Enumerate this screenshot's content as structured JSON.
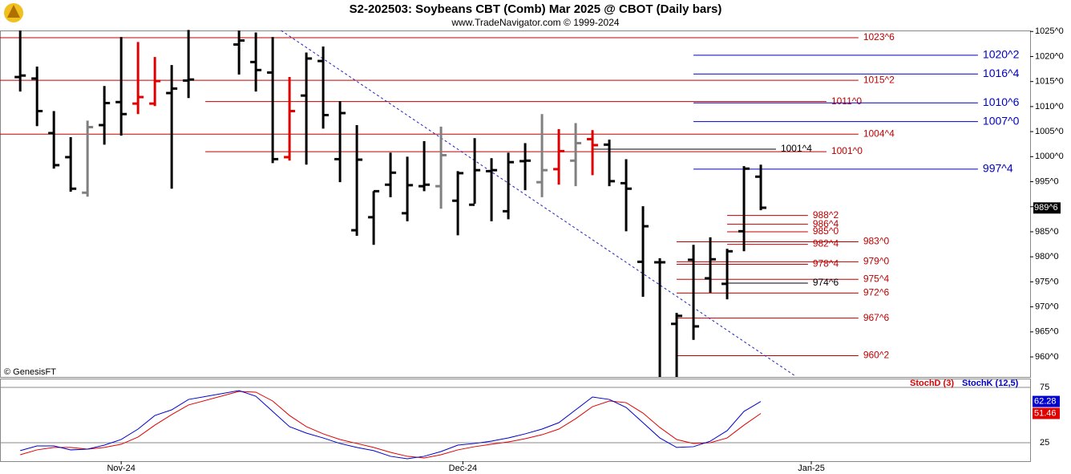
{
  "chart_data": [
    {
      "type": "ohlc",
      "title": "S2-202503:  Soybeans CBT (Comb) Mar 2025 @ CBOT  (Daily bars)",
      "subtitle": "www.TradeNavigator.com © 1999-2024",
      "watermark": "© GenesisFT",
      "x": [
        0,
        1,
        2,
        3,
        4,
        5,
        6,
        7,
        8,
        9,
        10,
        13,
        14,
        15,
        16,
        17,
        18,
        19,
        20,
        21,
        22,
        23,
        24,
        25,
        26,
        27,
        28,
        29,
        30,
        31,
        32,
        33,
        34,
        35,
        36,
        37,
        38,
        39,
        40,
        41,
        42,
        43,
        44
      ],
      "open": [
        1015.9,
        1015.6,
        1004.7,
        999.9,
        992.8,
        1006.3,
        1010.9,
        1010.6,
        1010.6,
        1012.7,
        1015.2,
        1022.4,
        1018.9,
        1016.8,
        999.9,
        1012.2,
        1019.1,
        999.5,
        985.3,
        987.9,
        994.4,
        988.7,
        994.1,
        994.1,
        991.2,
        990.4,
        997.1,
        989.1,
        999.1,
        994.9,
        997.5,
        999.2,
        1003.5,
        1002.4,
        994.7,
        979.0,
        978.9,
        966.6,
        979.4,
        975.7,
        974.6,
        985.1,
        996.0
      ],
      "high": [
        1025.2,
        1018.0,
        1009.1,
        1003.9,
        1007.2,
        1014.1,
        1023.9,
        1022.9,
        1019.9,
        1018.3,
        1025.3,
        1025.2,
        1024.8,
        1023.9,
        1015.9,
        1020.8,
        1022.0,
        1011.1,
        1006.3,
        993.1,
        1000.8,
        1000.0,
        1003.1,
        1006.0,
        997.1,
        1003.7,
        999.7,
        1000.8,
        1002.7,
        1008.5,
        1005.5,
        1006.7,
        1005.3,
        1003.4,
        999.5,
        990.1,
        979.7,
        968.8,
        982.4,
        983.9,
        981.6,
        998.1,
        998.4
      ],
      "low": [
        1013.0,
        1006.1,
        997.6,
        993.0,
        992.0,
        1002.4,
        1004.2,
        1008.5,
        1010.1,
        993.6,
        1011.7,
        1016.4,
        1013.0,
        998.7,
        999.2,
        998.4,
        1005.6,
        994.9,
        984.2,
        982.4,
        991.9,
        987.1,
        993.1,
        989.6,
        984.3,
        990.6,
        987.1,
        987.5,
        993.3,
        991.9,
        994.4,
        994.1,
        996.3,
        994.1,
        985.1,
        972.0,
        956.0,
        956.0,
        963.4,
        972.8,
        971.5,
        981.1,
        989.3
      ],
      "close": [
        1016.2,
        1009.1,
        998.3,
        993.6,
        1005.9,
        1010.7,
        1008.5,
        1011.9,
        1015.1,
        1013.6,
        1015.4,
        1023.2,
        1017.3,
        999.5,
        1009.1,
        1019.6,
        1008.3,
        1008.7,
        999.4,
        993.1,
        996.8,
        994.3,
        994.4,
        1000.3,
        996.7,
        997.3,
        997.3,
        998.9,
        999.2,
        997.3,
        1001.1,
        1002.7,
        1002.3,
        995.1,
        993.6,
        986.1,
        978.9,
        968.2,
        966.1,
        979.5,
        981.1,
        997.6,
        989.8
      ],
      "bar_colors": [
        "#000000",
        "#000000",
        "#000000",
        "#000000",
        "#808080",
        "#000000",
        "#000000",
        "#e00000",
        "#e00000",
        "#000000",
        "#000000",
        "#000000",
        "#000000",
        "#000000",
        "#e00000",
        "#000000",
        "#000000",
        "#000000",
        "#000000",
        "#000000",
        "#000000",
        "#000000",
        "#000000",
        "#808080",
        "#000000",
        "#000000",
        "#000000",
        "#000000",
        "#000000",
        "#808080",
        "#e00000",
        "#808080",
        "#e00000",
        "#000000",
        "#000000",
        "#000000",
        "#000000",
        "#000000",
        "#000000",
        "#000000",
        "#000000",
        "#000000",
        "#000000"
      ],
      "xlim": [
        -1.2,
        60
      ],
      "xticks": [
        {
          "value": 6,
          "label": "Nov-24"
        },
        {
          "value": 26.3,
          "label": "Dec-24"
        },
        {
          "value": 47,
          "label": "Jan-25"
        }
      ],
      "ylim": [
        956,
        1025.2
      ],
      "yticks": [
        {
          "value": 960,
          "label": "960^0"
        },
        {
          "value": 965,
          "label": "965^0"
        },
        {
          "value": 970,
          "label": "970^0"
        },
        {
          "value": 975,
          "label": "975^0"
        },
        {
          "value": 980,
          "label": "980^0"
        },
        {
          "value": 985,
          "label": "985^0"
        },
        {
          "value": 990,
          "label": "990^0"
        },
        {
          "value": 995,
          "label": "995^0"
        },
        {
          "value": 1000,
          "label": "1000^0"
        },
        {
          "value": 1005,
          "label": "1005^0"
        },
        {
          "value": 1010,
          "label": "1010^0"
        },
        {
          "value": 1015,
          "label": "1015^0"
        },
        {
          "value": 1020,
          "label": "1020^0"
        },
        {
          "value": 1025,
          "label": "1025^0"
        }
      ],
      "last_price": {
        "value": 989.75,
        "label": "989^6"
      },
      "trendline": {
        "x": [
          15.5,
          46
        ],
        "y": [
          1025.2,
          956.3
        ],
        "color": "#2020c0"
      },
      "levels": [
        {
          "value": 1023.75,
          "label": "1023^6",
          "color": "#c00000",
          "start": -1.2,
          "end": 49.8
        },
        {
          "value": 1015.25,
          "label": "1015^2",
          "color": "#c00000",
          "start": -1.2,
          "end": 49.8
        },
        {
          "value": 1011,
          "label": "1011^0",
          "color": "#c00000",
          "start": 11,
          "end": 47.9
        },
        {
          "value": 1004.5,
          "label": "1004^4",
          "color": "#c00000",
          "start": -1.2,
          "end": 49.8
        },
        {
          "value": 1001,
          "label": "1001^0",
          "color": "#c00000",
          "start": 11,
          "end": 47.9
        },
        {
          "value": 983,
          "label": "983^0",
          "color": "#c00000",
          "start": 39,
          "end": 49.8
        },
        {
          "value": 979,
          "label": "979^0",
          "color": "#c00000",
          "start": 39,
          "end": 49.8
        },
        {
          "value": 975.5,
          "label": "975^4",
          "color": "#c00000",
          "start": 39,
          "end": 49.8
        },
        {
          "value": 972.75,
          "label": "972^6",
          "color": "#c00000",
          "start": 39,
          "end": 49.8
        },
        {
          "value": 967.75,
          "label": "967^6",
          "color": "#c00000",
          "start": 39,
          "end": 49.8
        },
        {
          "value": 960.25,
          "label": "960^2",
          "color": "#c00000",
          "start": 39,
          "end": 49.8
        },
        {
          "value": 988.25,
          "label": "988^2",
          "color": "#c00000",
          "start": 42,
          "end": 46.8
        },
        {
          "value": 986.5,
          "label": "986^4",
          "color": "#c00000",
          "start": 42,
          "end": 46.8
        },
        {
          "value": 985,
          "label": "985^0",
          "color": "#c00000",
          "start": 42,
          "end": 46.8
        },
        {
          "value": 982.5,
          "label": "982^4",
          "color": "#c00000",
          "start": 42,
          "end": 46.8
        },
        {
          "value": 978.5,
          "label": "978^4",
          "color": "#c00000",
          "start": 39,
          "end": 46.8
        },
        {
          "value": 1020.25,
          "label": "1020^2",
          "color": "#0000c0",
          "start": 40,
          "end": 56.9
        },
        {
          "value": 1016.5,
          "label": "1016^4",
          "color": "#0000c0",
          "start": 40,
          "end": 56.9
        },
        {
          "value": 1010.75,
          "label": "1010^6",
          "color": "#0000c0",
          "start": 40,
          "end": 56.9
        },
        {
          "value": 1007,
          "label": "1007^0",
          "color": "#0000c0",
          "start": 40,
          "end": 56.9
        },
        {
          "value": 997.5,
          "label": "997^4",
          "color": "#0000c0",
          "start": 40,
          "end": 56.9
        },
        {
          "value": 1001.5,
          "label": "1001^4",
          "color": "#000000",
          "start": 34,
          "end": 44.9
        },
        {
          "value": 974.75,
          "label": "974^6",
          "color": "#000000",
          "start": 42,
          "end": 46.8
        }
      ]
    },
    {
      "type": "line",
      "x": [
        0,
        1,
        2,
        3,
        4,
        5,
        6,
        7,
        8,
        9,
        10,
        13,
        14,
        15,
        16,
        17,
        18,
        19,
        20,
        21,
        22,
        23,
        24,
        25,
        26,
        27,
        28,
        29,
        30,
        31,
        32,
        33,
        34,
        35,
        36,
        37,
        38,
        39,
        40,
        41,
        42,
        43,
        44
      ],
      "series": [
        {
          "name": "StochD (3)",
          "color": "#e00000",
          "values": [
            14.1,
            18.5,
            20.7,
            20.7,
            19.2,
            20.7,
            23.6,
            30.1,
            40.9,
            50.4,
            59.1,
            71.4,
            70.7,
            62.7,
            49.6,
            39.5,
            33.0,
            27.9,
            24.3,
            20.7,
            16.3,
            12.7,
            11.2,
            14.1,
            18.5,
            21.4,
            23.6,
            25.7,
            28.6,
            32.2,
            37.3,
            46.7,
            57.6,
            62.7,
            61.2,
            51.8,
            38.8,
            27.9,
            24.3,
            25.0,
            29.3,
            40.9,
            51.46
          ]
        },
        {
          "name": "StochK (12,5)",
          "color": "#0000cc",
          "values": [
            17.8,
            22.1,
            22.1,
            18.5,
            19.2,
            22.8,
            27.9,
            37.3,
            49.6,
            54.7,
            64.1,
            72.1,
            67.0,
            53.3,
            39.5,
            33.7,
            29.3,
            24.3,
            20.7,
            17.8,
            12.7,
            10.5,
            12.7,
            17.0,
            22.8,
            24.3,
            26.4,
            29.3,
            33.0,
            37.3,
            43.1,
            54.7,
            66.3,
            64.1,
            56.9,
            43.1,
            29.3,
            20.7,
            21.4,
            26.4,
            35.9,
            53.3,
            62.28
          ]
        }
      ],
      "xlim": [
        -1.2,
        60
      ],
      "ylim": [
        8.3,
        83
      ],
      "yticks": [
        25,
        75
      ]
    }
  ]
}
